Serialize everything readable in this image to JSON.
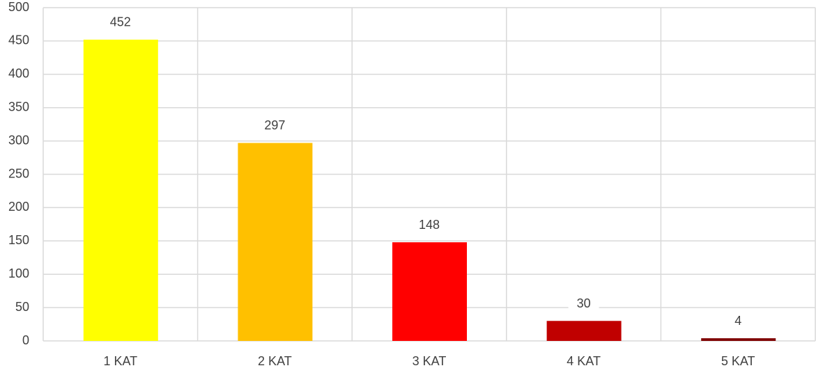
{
  "chart_data": {
    "type": "bar",
    "categories": [
      "1 KAT",
      "2 KAT",
      "3 KAT",
      "4 KAT",
      "5 KAT"
    ],
    "values": [
      452,
      297,
      148,
      30,
      4
    ],
    "colors": [
      "#ffff00",
      "#ffc000",
      "#ff0000",
      "#c00000",
      "#7f0000"
    ],
    "ylim": [
      0,
      500
    ],
    "yticks": [
      0,
      50,
      100,
      150,
      200,
      250,
      300,
      350,
      400,
      450,
      500
    ],
    "grid": true
  }
}
